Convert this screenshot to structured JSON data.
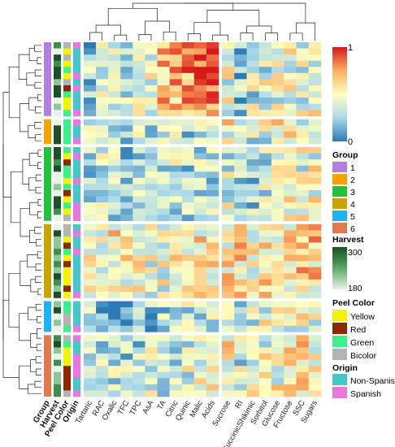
{
  "chart_data": {
    "type": "heatmap",
    "annotation_columns": [
      "Group",
      "Harvest",
      "Peel Color",
      "Origin"
    ],
    "columns_left_block": [
      "Tartaric",
      "RAC",
      "Oxalic",
      "TFC",
      "TPC",
      "AsA",
      "TA",
      "Citric",
      "Quinic",
      "Malic",
      "Acids"
    ],
    "columns_right_block": [
      "Sucrose",
      "RI",
      "SuccinicShikimic",
      "Sorbitol",
      "Glucose",
      "Fructose",
      "SSC",
      "Sugars"
    ],
    "color_scale": {
      "min": 0,
      "max": 1,
      "tick_labels": [
        "1",
        "0"
      ],
      "stops": [
        "#2c7bb6",
        "#abd9e9",
        "#ffffbf",
        "#fdae61",
        "#d7191c"
      ]
    },
    "legends": {
      "group": {
        "title": "Group",
        "items": [
          {
            "label": "1",
            "color": "#b07fe0"
          },
          {
            "label": "2",
            "color": "#f5a300"
          },
          {
            "label": "3",
            "color": "#22c23a"
          },
          {
            "label": "4",
            "color": "#c8a400"
          },
          {
            "label": "5",
            "color": "#1ab4f0"
          },
          {
            "label": "6",
            "color": "#e07850"
          }
        ]
      },
      "harvest": {
        "title": "Harvest",
        "max_label": "300",
        "min_label": "180",
        "stops": [
          "#1f4f28",
          "#3e8f4e",
          "#8fc798",
          "#e8f4e8"
        ]
      },
      "peel_color": {
        "title": "Peel Color",
        "items": [
          {
            "label": "Yellow",
            "color": "#f2f500"
          },
          {
            "label": "Red",
            "color": "#8b2a00"
          },
          {
            "label": "Green",
            "color": "#3cf08c"
          },
          {
            "label": "Bicolor",
            "color": "#b4b4b4"
          }
        ]
      },
      "origin": {
        "title": "Origin",
        "items": [
          {
            "label": "Non-Spanish",
            "color": "#46c8c8"
          },
          {
            "label": "Spanish",
            "color": "#e878e0"
          }
        ]
      }
    },
    "row_groups": [
      {
        "group": "1",
        "rows": 12
      },
      {
        "group": "2",
        "rows": 4
      },
      {
        "group": "3",
        "rows": 12
      },
      {
        "group": "4",
        "rows": 12
      },
      {
        "group": "5",
        "rows": 5
      },
      {
        "group": "6",
        "rows": 10
      }
    ]
  }
}
